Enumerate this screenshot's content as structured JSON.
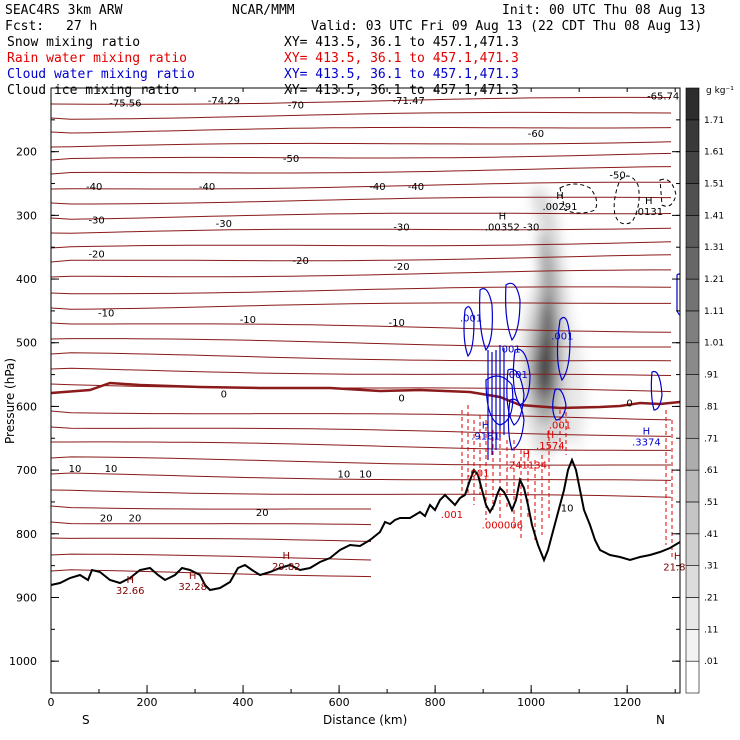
{
  "header": {
    "model": "SEAC4RS  3km ARW",
    "org": "NCAR/MMM",
    "init": "Init: 00 UTC Thu 08 Aug 13",
    "fcst_label": "Fcst:",
    "fcst_value": "27 h",
    "valid": "Valid: 03 UTC Fri 09 Aug 13 (22 CDT Thu 08 Aug 13)",
    "fields": [
      {
        "name": "Snow mixing ratio",
        "xy": "XY= 413.5, 36.1 to 457.1,471.3",
        "color": "#000000"
      },
      {
        "name": "Rain water mixing ratio",
        "xy": "XY= 413.5, 36.1 to 457.1,471.3",
        "color": "#e00000"
      },
      {
        "name": "Cloud water mixing ratio",
        "xy": "XY= 413.5, 36.1 to 457.1,471.3",
        "color": "#0000cc"
      },
      {
        "name": "Cloud ice mixing ratio",
        "xy": "XY= 413.5, 36.1 to 457.1,471.3",
        "color": "#000000"
      }
    ]
  },
  "chart_data": {
    "type": "cross-section",
    "xlabel": "Distance (km)",
    "ylabel": "Pressure (hPa)",
    "xlim": [
      0,
      1310
    ],
    "ylim": [
      1050,
      100
    ],
    "x_ticks": [
      "0",
      "200",
      "400",
      "600",
      "800",
      "1000",
      "1200"
    ],
    "y_ticks": [
      "200",
      "300",
      "400",
      "500",
      "600",
      "700",
      "800",
      "900",
      "1000"
    ],
    "end_labels": {
      "left": "S",
      "right": "N"
    },
    "colorbar": {
      "units": "g kg⁻¹",
      "levels": [
        ".01",
        ".11",
        ".21",
        ".31",
        ".41",
        ".51",
        ".61",
        ".71",
        ".81",
        ".91",
        "1.01",
        "1.11",
        "1.21",
        "1.31",
        "1.41",
        "1.51",
        "1.61",
        "1.71"
      ]
    },
    "temperature_labels": [
      {
        "x": 155,
        "p": 129,
        "text": "-75.56"
      },
      {
        "x": 360,
        "p": 125,
        "text": "-74.29"
      },
      {
        "x": 510,
        "p": 132,
        "text": "-70"
      },
      {
        "x": 745,
        "p": 125,
        "text": "-71.47"
      },
      {
        "x": 1275,
        "p": 118,
        "text": "-65.74"
      },
      {
        "x": 1010,
        "p": 177,
        "text": "-60"
      },
      {
        "x": 500,
        "p": 216,
        "text": "-50"
      },
      {
        "x": 1180,
        "p": 242,
        "text": "-50"
      },
      {
        "x": 90,
        "p": 260,
        "text": "-40"
      },
      {
        "x": 325,
        "p": 260,
        "text": "-40"
      },
      {
        "x": 680,
        "p": 260,
        "text": "-40"
      },
      {
        "x": 760,
        "p": 260,
        "text": "-40"
      },
      {
        "x": 95,
        "p": 313,
        "text": "-30"
      },
      {
        "x": 360,
        "p": 318,
        "text": "-30"
      },
      {
        "x": 730,
        "p": 324,
        "text": "-30"
      },
      {
        "x": 1000,
        "p": 324,
        "text": "-30"
      },
      {
        "x": 95,
        "p": 366,
        "text": "-20"
      },
      {
        "x": 520,
        "p": 376,
        "text": "-20"
      },
      {
        "x": 730,
        "p": 386,
        "text": "-20"
      },
      {
        "x": 115,
        "p": 459,
        "text": "-10"
      },
      {
        "x": 410,
        "p": 469,
        "text": "-10"
      },
      {
        "x": 720,
        "p": 474,
        "text": "-10"
      },
      {
        "x": 360,
        "p": 586,
        "text": "0"
      },
      {
        "x": 730,
        "p": 592,
        "text": "0"
      },
      {
        "x": 1205,
        "p": 600,
        "text": "0"
      },
      {
        "x": 50,
        "p": 703,
        "text": "10"
      },
      {
        "x": 125,
        "p": 703,
        "text": "10"
      },
      {
        "x": 610,
        "p": 712,
        "text": "10"
      },
      {
        "x": 655,
        "p": 712,
        "text": "10"
      },
      {
        "x": 1075,
        "p": 765,
        "text": "10"
      },
      {
        "x": 115,
        "p": 781,
        "text": "20"
      },
      {
        "x": 175,
        "p": 781,
        "text": "20"
      },
      {
        "x": 440,
        "p": 772,
        "text": "20"
      }
    ],
    "highs": [
      {
        "x": 1060,
        "p": 290,
        "value": ".00291",
        "color": "#000000"
      },
      {
        "x": 940,
        "p": 322,
        "value": ".00352",
        "color": "#000000"
      },
      {
        "x": 1245,
        "p": 298,
        "value": ".0131",
        "color": "#000000"
      },
      {
        "x": 905,
        "p": 650,
        "value": ".9181",
        "color": "#0000cc"
      },
      {
        "x": 1240,
        "p": 660,
        "value": ".3374",
        "color": "#0000cc"
      },
      {
        "x": 1040,
        "p": 665,
        "value": ".1574",
        "color": "#e00000"
      },
      {
        "x": 990,
        "p": 696,
        "value": ".241134",
        "color": "#e00000"
      },
      {
        "x": 165,
        "p": 893,
        "value": "32.66",
        "color": "#800000"
      },
      {
        "x": 295,
        "p": 887,
        "value": "32.28",
        "color": "#800000"
      },
      {
        "x": 490,
        "p": 855,
        "value": "29.82",
        "color": "#800000"
      },
      {
        "x": 1305,
        "p": 856,
        "value": "21.84",
        "color": "#800000"
      }
    ],
    "cloud_labels": [
      {
        "x": 875,
        "p": 467,
        "text": ".001",
        "color": "#0000cc"
      },
      {
        "x": 955,
        "p": 515,
        "text": ".001",
        "color": "#0000cc"
      },
      {
        "x": 970,
        "p": 555,
        "text": ".001",
        "color": "#0000cc"
      },
      {
        "x": 1065,
        "p": 495,
        "text": ".001",
        "color": "#0000cc"
      },
      {
        "x": 1060,
        "p": 635,
        "text": ".001",
        "color": "#e00000"
      },
      {
        "x": 890,
        "p": 710,
        "text": ".001",
        "color": "#e00000"
      },
      {
        "x": 835,
        "p": 775,
        "text": ".001",
        "color": "#e00000"
      },
      {
        "x": 940,
        "p": 792,
        "text": ".000006",
        "color": "#e00000"
      }
    ]
  }
}
